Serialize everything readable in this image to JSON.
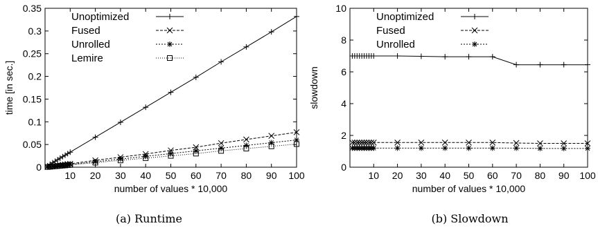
{
  "chart_data": [
    {
      "type": "line",
      "caption": "(a) Runtime",
      "xlabel": "number of values * 10,000",
      "ylabel": "time [in sec.]",
      "xlim": [
        0,
        100
      ],
      "ylim": [
        0,
        0.35
      ],
      "xticks": [
        "10",
        "20",
        "30",
        "40",
        "50",
        "60",
        "70",
        "80",
        "90",
        "100"
      ],
      "yticks": [
        "0",
        "0.05",
        "0.1",
        "0.15",
        "0.2",
        "0.25",
        "0.3",
        "0.35"
      ],
      "legend_position": "top-left",
      "grid": false,
      "x": [
        1,
        2,
        3,
        4,
        5,
        6,
        7,
        8,
        9,
        10,
        20,
        30,
        40,
        50,
        60,
        70,
        80,
        90,
        100
      ],
      "series": [
        {
          "name": "Unoptimized",
          "marker": "plus",
          "dash": "solid",
          "values": [
            0.0033,
            0.0066,
            0.0099,
            0.0132,
            0.0166,
            0.0199,
            0.0232,
            0.0265,
            0.0298,
            0.0331,
            0.066,
            0.099,
            0.132,
            0.165,
            0.198,
            0.232,
            0.265,
            0.298,
            0.332
          ]
        },
        {
          "name": "Fused",
          "marker": "x",
          "dash": "dashed",
          "values": [
            0.0008,
            0.0015,
            0.0023,
            0.003,
            0.0038,
            0.0045,
            0.0053,
            0.006,
            0.0068,
            0.0075,
            0.015,
            0.022,
            0.029,
            0.037,
            0.044,
            0.053,
            0.061,
            0.069,
            0.077
          ]
        },
        {
          "name": "Unrolled",
          "marker": "star",
          "dash": "dotted",
          "values": [
            0.0006,
            0.0012,
            0.0018,
            0.0024,
            0.003,
            0.0036,
            0.0042,
            0.0048,
            0.0054,
            0.006,
            0.012,
            0.018,
            0.024,
            0.03,
            0.036,
            0.042,
            0.048,
            0.054,
            0.06
          ]
        },
        {
          "name": "Lemire",
          "marker": "square",
          "dash": "fine-dotted",
          "values": [
            0.0005,
            0.001,
            0.0015,
            0.002,
            0.0025,
            0.003,
            0.0035,
            0.004,
            0.0045,
            0.005,
            0.01,
            0.015,
            0.02,
            0.025,
            0.03,
            0.036,
            0.041,
            0.046,
            0.051
          ]
        }
      ]
    },
    {
      "type": "line",
      "caption": "(b) Slowdown",
      "xlabel": "number of values * 10,000",
      "ylabel": "slowdown",
      "xlim": [
        0,
        100
      ],
      "ylim": [
        0,
        10
      ],
      "xticks": [
        "10",
        "20",
        "30",
        "40",
        "50",
        "60",
        "70",
        "80",
        "90",
        "100"
      ],
      "yticks": [
        "0",
        "2",
        "4",
        "6",
        "8",
        "10"
      ],
      "legend_position": "top-left",
      "grid": false,
      "x": [
        1,
        2,
        3,
        4,
        5,
        6,
        7,
        8,
        9,
        10,
        20,
        30,
        40,
        50,
        60,
        70,
        80,
        90,
        100
      ],
      "series": [
        {
          "name": "Unoptimized",
          "marker": "plus",
          "dash": "solid",
          "values": [
            7.0,
            7.0,
            7.0,
            7.0,
            7.0,
            7.0,
            7.0,
            7.0,
            7.0,
            7.0,
            7.0,
            6.98,
            6.95,
            6.95,
            6.95,
            6.45,
            6.45,
            6.45,
            6.45
          ]
        },
        {
          "name": "Fused",
          "marker": "x",
          "dash": "dashed",
          "values": [
            1.55,
            1.55,
            1.55,
            1.55,
            1.55,
            1.55,
            1.55,
            1.55,
            1.55,
            1.55,
            1.55,
            1.55,
            1.55,
            1.55,
            1.55,
            1.52,
            1.5,
            1.5,
            1.5
          ]
        },
        {
          "name": "Unrolled",
          "marker": "star",
          "dash": "dotted",
          "values": [
            1.2,
            1.2,
            1.2,
            1.2,
            1.2,
            1.2,
            1.2,
            1.2,
            1.2,
            1.2,
            1.2,
            1.2,
            1.2,
            1.2,
            1.2,
            1.2,
            1.18,
            1.18,
            1.18
          ]
        }
      ]
    }
  ]
}
